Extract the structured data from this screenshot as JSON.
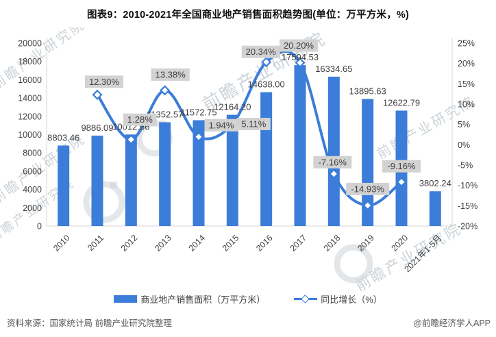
{
  "title": "图表9：2010-2021年全国商业地产销售面积趋势图(单位：万平方米，%)",
  "chart_data": {
    "type": "combo_bar_line",
    "title": "图表9：2010-2021年全国商业地产销售面积趋势图(单位：万平方米，%)",
    "categories": [
      "2010",
      "2011",
      "2012",
      "2013",
      "2014",
      "2015",
      "2016",
      "2017",
      "2018",
      "2019",
      "2020",
      "2021年1-5月"
    ],
    "series": [
      {
        "name": "商业地产销售面积（万平方米）",
        "type": "bar",
        "axis": "left",
        "values": [
          8803.46,
          9886.09,
          10012.66,
          11352.57,
          11572.75,
          12164.2,
          14638.0,
          17594.53,
          16334.65,
          13895.63,
          12622.79,
          3802.24
        ],
        "labels": [
          "8803.46",
          "9886.09",
          "10012.66",
          "11352.57",
          "11572.75",
          "12164.20",
          "14638.00",
          "17594.53",
          "16334.65",
          "13895.63",
          "12622.79",
          "3802.24"
        ]
      },
      {
        "name": "同比增长（%）",
        "type": "line",
        "axis": "right",
        "start_index": 1,
        "values": [
          12.3,
          1.28,
          13.38,
          1.94,
          5.11,
          20.34,
          20.2,
          -7.16,
          -14.93,
          -9.16
        ],
        "labels": [
          "12.30%",
          "1.28%",
          "13.38%",
          "1.94%",
          "5.11%",
          "20.34%",
          "20.20%",
          "-7.16%",
          "-14.93%",
          "-9.16%"
        ]
      }
    ],
    "left_axis": {
      "min": 0,
      "max": 20000,
      "step": 2000,
      "tick_labels": [
        "0",
        "2000",
        "4000",
        "6000",
        "8000",
        "10000",
        "12000",
        "14000",
        "16000",
        "18000",
        "20000"
      ]
    },
    "right_axis": {
      "min": -20,
      "max": 25,
      "step": 5,
      "tick_labels": [
        "-20%",
        "-15%",
        "-10%",
        "-5%",
        "0%",
        "5%",
        "10%",
        "15%",
        "20%",
        "25%"
      ]
    },
    "grid": false,
    "legend_position": "bottom"
  },
  "colors": {
    "bar": "#3b7dd8",
    "line": "#3b7dd8",
    "marker_fill": "#ffffff",
    "callout_bg": "#d2d2d2",
    "text_dark": "#404040",
    "axis_line": "#d6d6d6",
    "footer_text": "#595959",
    "watermark": "#ccd3d8"
  },
  "legend": {
    "items": [
      {
        "label": "商业地产销售面积（万平方米）",
        "swatch": "bar-swatch"
      },
      {
        "label": "同比增长（%）",
        "swatch": "line-diamond-swatch"
      }
    ]
  },
  "footer": {
    "source": "资料来源：国家统计局 前瞻产业研究院整理",
    "credit": "@前瞻经济学人APP"
  },
  "watermark": {
    "text": "前瞻产业研究院"
  }
}
